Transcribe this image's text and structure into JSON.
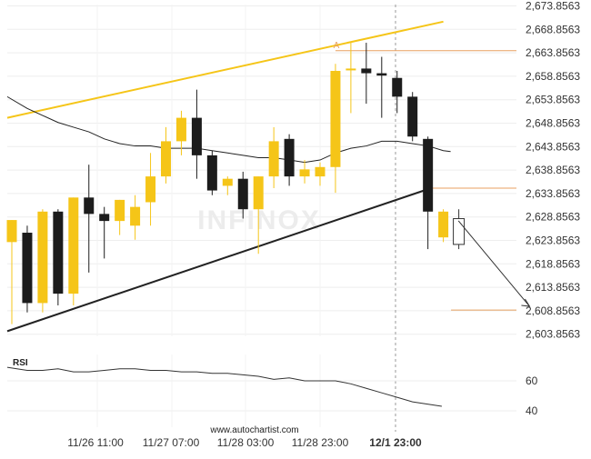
{
  "chart_data": [
    {
      "type": "candlestick",
      "watermark": "INFINOX",
      "y_ticks": [
        "2,673.8563",
        "2,668.8563",
        "2,663.8563",
        "2,658.8563",
        "2,653.8563",
        "2,648.8563",
        "2,643.8563",
        "2,638.8563",
        "2,633.8563",
        "2,628.8563",
        "2,623.8563",
        "2,618.8563",
        "2,613.8563",
        "2,608.8563",
        "2,603.8563"
      ],
      "ylim": [
        2601.0,
        2675.5
      ],
      "x_ticks": [
        "11/26 11:00",
        "11/27 07:00",
        "11/28 03:00",
        "11/28 23:00",
        "12/1 23:00"
      ],
      "candles": [
        {
          "open": 2623.5,
          "high": 2628.2,
          "low": 2606.0,
          "close": 2628.2
        },
        {
          "open": 2625.5,
          "high": 2627.0,
          "low": 2608.5,
          "close": 2610.5
        },
        {
          "open": 2610.5,
          "high": 2630.5,
          "low": 2608.5,
          "close": 2630.0
        },
        {
          "open": 2630.0,
          "high": 2630.5,
          "low": 2610.0,
          "close": 2612.5
        },
        {
          "open": 2612.5,
          "high": 2633.0,
          "low": 2610.0,
          "close": 2633.0
        },
        {
          "open": 2633.0,
          "high": 2640.0,
          "low": 2617.0,
          "close": 2629.5
        },
        {
          "open": 2629.5,
          "high": 2631.0,
          "low": 2620.0,
          "close": 2628.0
        },
        {
          "open": 2628.0,
          "high": 2632.5,
          "low": 2625.0,
          "close": 2632.5
        },
        {
          "open": 2627.0,
          "high": 2633.5,
          "low": 2624.0,
          "close": 2631.0
        },
        {
          "open": 2632.0,
          "high": 2642.5,
          "low": 2627.0,
          "close": 2637.5
        },
        {
          "open": 2637.5,
          "high": 2648.0,
          "low": 2636.0,
          "close": 2645.0
        },
        {
          "open": 2645.0,
          "high": 2651.5,
          "low": 2642.0,
          "close": 2650.0
        },
        {
          "open": 2650.0,
          "high": 2656.0,
          "low": 2637.0,
          "close": 2642.0
        },
        {
          "open": 2642.0,
          "high": 2643.0,
          "low": 2633.5,
          "close": 2634.5
        },
        {
          "open": 2635.5,
          "high": 2637.5,
          "low": 2633.5,
          "close": 2637.0
        },
        {
          "open": 2637.0,
          "high": 2638.5,
          "low": 2628.5,
          "close": 2630.5
        },
        {
          "open": 2630.5,
          "high": 2637.5,
          "low": 2621.0,
          "close": 2637.5
        },
        {
          "open": 2637.5,
          "high": 2648.0,
          "low": 2635.0,
          "close": 2645.0
        },
        {
          "open": 2645.5,
          "high": 2646.5,
          "low": 2635.5,
          "close": 2637.5
        },
        {
          "open": 2637.5,
          "high": 2641.0,
          "low": 2636.0,
          "close": 2639.0
        },
        {
          "open": 2637.5,
          "high": 2640.5,
          "low": 2635.5,
          "close": 2639.5
        },
        {
          "open": 2639.5,
          "high": 2661.5,
          "low": 2634.0,
          "close": 2660.0
        },
        {
          "open": 2660.5,
          "high": 2666.0,
          "low": 2651.0,
          "close": 2660.5
        },
        {
          "open": 2660.5,
          "high": 2666.0,
          "low": 2653.0,
          "close": 2659.5
        },
        {
          "open": 2659.5,
          "high": 2663.0,
          "low": 2650.0,
          "close": 2659.0
        },
        {
          "open": 2658.5,
          "high": 2660.0,
          "low": 2651.0,
          "close": 2654.5
        },
        {
          "open": 2654.5,
          "high": 2655.5,
          "low": 2645.0,
          "close": 2646.0
        },
        {
          "open": 2645.5,
          "high": 2646.0,
          "low": 2622.0,
          "close": 2630.0
        },
        {
          "open": 2624.5,
          "high": 2630.5,
          "low": 2623.5,
          "close": 2630.0
        }
      ],
      "moving_average": [
        2654.5,
        2652.0,
        2650.5,
        2649.0,
        2648.0,
        2647.0,
        2645.5,
        2644.5,
        2644.0,
        2644.0,
        2643.5,
        2643.5,
        2643.5,
        2643.0,
        2642.5,
        2642.0,
        2641.5,
        2641.5,
        2641.0,
        2640.5,
        2641.0,
        2642.5,
        2643.5,
        2644.0,
        2645.0,
        2645.0,
        2644.5,
        2644.0,
        2643.0
      ],
      "patterns": {
        "upper_trendline": [
          [
            0.5,
            2650.0
          ],
          [
            28.0,
            2670.5
          ]
        ],
        "lower_trendline": [
          [
            0.5,
            2604.5
          ],
          [
            27.2,
            2635.0
          ]
        ],
        "resistance_level": {
          "price": 2664.3,
          "from": 21.0,
          "to": 34.0
        },
        "breakout_level": {
          "price": 2635.0,
          "from": 27.2,
          "to": 34.0
        },
        "target_level": {
          "price": 2609.0,
          "from": 28.5,
          "to": 34.0
        },
        "forecast_arrow": [
          [
            27.8,
            2629.0
          ],
          [
            33.3,
            2609.8
          ]
        ],
        "point_label": {
          "text": "A",
          "x": 21.0,
          "y": 2664.3
        },
        "projection_candle": {
          "open": 2628.5,
          "high": 2630.5,
          "low": 2622.0,
          "close": 2623.0,
          "x": 28.0
        }
      },
      "footer_text": "www.autochartist.com"
    },
    {
      "type": "line",
      "title": "RSI",
      "y_ticks": [
        60,
        40
      ],
      "ylim": [
        35,
        85
      ],
      "values": [
        69,
        67,
        67,
        68,
        66,
        66,
        67,
        68,
        68,
        67,
        67,
        66,
        66,
        65,
        65,
        64,
        63,
        61,
        62,
        60,
        60,
        60,
        58,
        55,
        52,
        49,
        46,
        43
      ],
      "x_positions": [
        0.5,
        1.0,
        2.0,
        3.0,
        4.0,
        5.0,
        6.0,
        7.0,
        8.0,
        9.0,
        10.0,
        11.0,
        12.0,
        13.0,
        14.0,
        15.0,
        16.0,
        17.0,
        18.0,
        19.0,
        20.0,
        21.0,
        22.0,
        23.0,
        24.0,
        25.0,
        26.0,
        27.9
      ]
    }
  ],
  "colors": {
    "bull": "#f5c518",
    "bear": "#1c1c1c",
    "upper_trendline": "#f5c518",
    "lower_trendline": "#222222",
    "level": "#e8a060",
    "arrow": "#333333",
    "ma": "#222222",
    "rsi": "#333333",
    "grid": "#eeeeee",
    "axis_text": "#333333",
    "label_A": "#e8a060"
  }
}
